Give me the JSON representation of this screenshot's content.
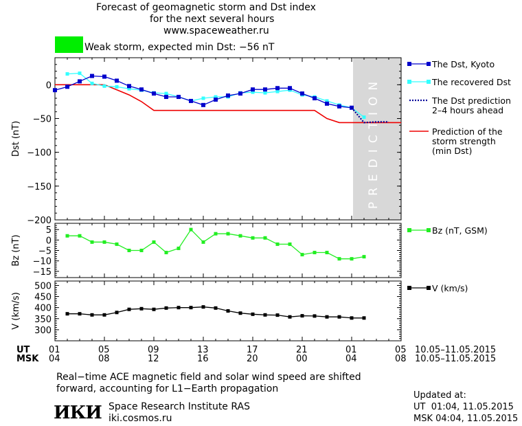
{
  "header": {
    "title_line1": "Forecast of geomagnetic storm and Dst index",
    "title_line2": "for the next several hours",
    "url": "www.spaceweather.ru",
    "storm_text": "Weak storm, expected min Dst: −56 nT",
    "storm_color": "#00ee00"
  },
  "colors": {
    "dst_kyoto": "#0000cc",
    "dst_recovered": "#33ffff",
    "dst_prediction": "#000099",
    "storm_strength": "#ee0000",
    "bz": "#22ee22",
    "speed": "#000000",
    "prediction_band": "#d8d8d8"
  },
  "chart_data": [
    {
      "type": "line",
      "panel": "dst",
      "ylabel": "Dst (nT)",
      "ylim": [
        -200,
        40
      ],
      "yticks": [
        0,
        -50,
        -100,
        -150,
        -200
      ],
      "prediction_label": "PREDICTION",
      "prediction_range": [
        25,
        29
      ],
      "series": [
        {
          "name": "The Dst, Kyoto",
          "x": [
            1,
            2,
            3,
            4,
            5,
            6,
            7,
            8,
            9,
            10,
            11,
            12,
            13,
            14,
            15,
            16,
            17,
            18,
            19,
            20,
            21,
            22,
            23,
            24,
            25
          ],
          "values": [
            -8,
            -3,
            5,
            13,
            12,
            6,
            -2,
            -7,
            -13,
            -18,
            -18,
            -24,
            -30,
            -22,
            -16,
            -13,
            -7,
            -7,
            -5,
            -5,
            -13,
            -20,
            -28,
            -32,
            -34
          ]
        },
        {
          "name": "The recovered Dst",
          "x": [
            2,
            3,
            4,
            5,
            6,
            7,
            8,
            9,
            10,
            11,
            12,
            13,
            14,
            15,
            16,
            17,
            18,
            19,
            20,
            21,
            22,
            23,
            24,
            25,
            26
          ],
          "values": [
            16,
            17,
            2,
            -2,
            -3,
            -6,
            -8,
            -12,
            -13,
            -18,
            -24,
            -20,
            -18,
            -18,
            -12,
            -11,
            -12,
            -10,
            -8,
            -15,
            -18,
            -24,
            -30,
            -34,
            -48
          ]
        },
        {
          "name": "The Dst prediction",
          "sublabel": "2–4 hours ahead",
          "x": [
            25,
            26,
            27,
            28
          ],
          "values": [
            -34,
            -56,
            -55,
            -55
          ]
        },
        {
          "name": "Prediction of the",
          "sublabel": "storm strength",
          "sublabel2": "(min Dst)",
          "x": [
            1,
            3,
            5,
            7,
            8,
            9,
            10,
            11,
            12,
            13,
            14,
            15,
            16,
            17,
            18,
            19,
            20,
            21,
            22,
            23,
            24,
            25,
            26,
            27,
            28,
            29
          ],
          "values": [
            0,
            0,
            0,
            -15,
            -25,
            -38,
            -38,
            -38,
            -38,
            -38,
            -38,
            -38,
            -38,
            -38,
            -38,
            -38,
            -38,
            -38,
            -38,
            -50,
            -56,
            -56,
            -56,
            -56,
            -56,
            -56
          ]
        }
      ]
    },
    {
      "type": "line",
      "panel": "bz",
      "ylabel": "Bz (nT)",
      "ylim": [
        -18,
        8
      ],
      "yticks": [
        5,
        0,
        -5,
        -10,
        -15
      ],
      "series": [
        {
          "name": "Bz (nT, GSM)",
          "x": [
            2,
            3,
            4,
            5,
            6,
            7,
            8,
            9,
            10,
            11,
            12,
            13,
            14,
            15,
            16,
            17,
            18,
            19,
            20,
            21,
            22,
            23,
            24,
            25,
            26
          ],
          "values": [
            2,
            2,
            -1,
            -1,
            -2,
            -5,
            -5,
            -1,
            -6,
            -4,
            5,
            -1,
            3,
            3,
            2,
            1,
            1,
            -2,
            -2,
            -7,
            -6,
            -6,
            -9,
            -9,
            -8
          ]
        }
      ]
    },
    {
      "type": "line",
      "panel": "v",
      "ylabel": "V (km/s)",
      "ylim": [
        250,
        520
      ],
      "yticks": [
        500,
        450,
        400,
        350,
        300
      ],
      "series": [
        {
          "name": "V (km/s)",
          "x": [
            2,
            3,
            4,
            5,
            6,
            7,
            8,
            9,
            10,
            11,
            12,
            13,
            14,
            15,
            16,
            17,
            18,
            19,
            20,
            21,
            22,
            23,
            24,
            25,
            26
          ],
          "values": [
            372,
            372,
            367,
            367,
            378,
            392,
            395,
            392,
            398,
            400,
            400,
            403,
            398,
            385,
            375,
            370,
            367,
            366,
            358,
            363,
            362,
            358,
            358,
            353,
            353
          ]
        }
      ]
    }
  ],
  "xaxis": {
    "ut_label": "UT",
    "msk_label": "MSK",
    "ut_ticks": [
      "01",
      "05",
      "09",
      "13",
      "17",
      "21",
      "01",
      "05"
    ],
    "msk_ticks": [
      "04",
      "08",
      "12",
      "16",
      "20",
      "00",
      "04",
      "08"
    ],
    "date_range": "10.05–11.05.2015"
  },
  "footer": {
    "note_line1": "Real−time ACE magnetic field and solar wind speed are shifted",
    "note_line2": "forward, accounting for L1−Earth propagation",
    "logo_text": "ИКИ",
    "institute": "Space Research Institute RAS",
    "site": "iki.cosmos.ru",
    "updated_title": "Updated at:",
    "updated_ut": "UT  01:04, 11.05.2015",
    "updated_msk": "MSK 04:04, 11.05.2015"
  }
}
